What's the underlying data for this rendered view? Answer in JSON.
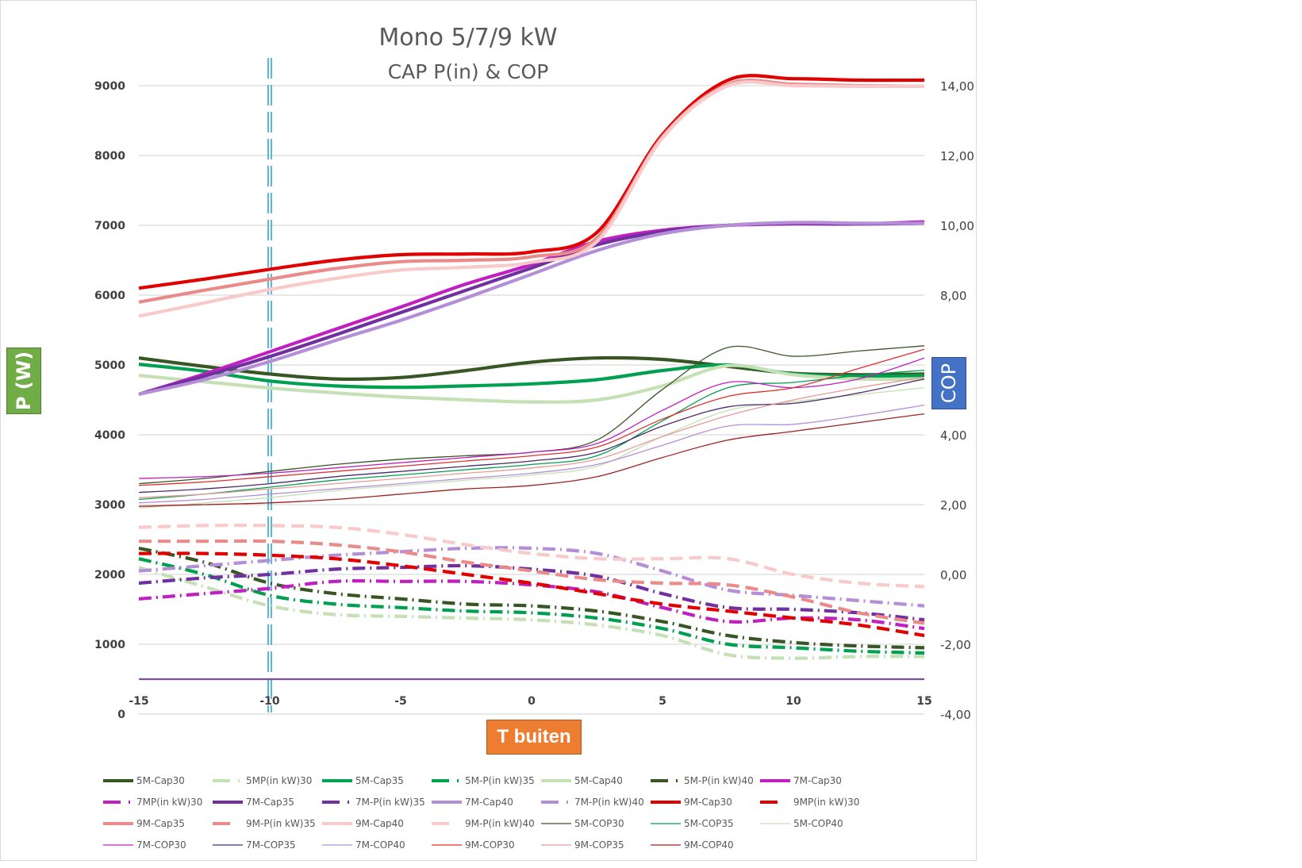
{
  "chart_data": {
    "type": "line",
    "title": "Mono 5/7/9 kW",
    "subtitle": "CAP P(in) & COP",
    "xlabel": "T buiten",
    "ylabel": "P (W)",
    "y2label": "COP",
    "x": [
      -15,
      -12.5,
      -10,
      -7.5,
      -5,
      -2.5,
      0,
      2.5,
      5,
      7.5,
      10,
      12.5,
      15
    ],
    "xlim": [
      -15,
      15
    ],
    "ylim": [
      0,
      9000
    ],
    "y2lim": [
      -4,
      14
    ],
    "xticks": [
      "-15",
      "-10",
      "-5",
      "0",
      "5",
      "10",
      "15"
    ],
    "xtick_values": [
      -15,
      -10,
      -5,
      0,
      5,
      10,
      15
    ],
    "yticks": [
      "0",
      "1000",
      "2000",
      "3000",
      "4000",
      "5000",
      "6000",
      "7000",
      "8000",
      "9000"
    ],
    "ytick_values": [
      0,
      1000,
      2000,
      3000,
      4000,
      5000,
      6000,
      7000,
      8000,
      9000
    ],
    "y2ticks": [
      "-4,00",
      "-2,00",
      "0,00",
      "2,00",
      "4,00",
      "8,00",
      "10,00",
      "12,00",
      "14,00"
    ],
    "y2tick_values": [
      -4,
      -2,
      0,
      2,
      4,
      8,
      10,
      12,
      14
    ],
    "grid": true,
    "legend_position": "bottom",
    "reference_line": {
      "x": -10,
      "label": "",
      "color": "#2ea8d6"
    },
    "baseline": {
      "y": 500,
      "color": "#7e4e9a"
    },
    "series": [
      {
        "name": "5M-Cap30",
        "axis": "left",
        "style": "solid",
        "weight": "thick",
        "color": "#375623",
        "values": [
          5100,
          4980,
          4870,
          4800,
          4820,
          4920,
          5040,
          5100,
          5080,
          4980,
          4880,
          4860,
          4870
        ]
      },
      {
        "name": "5MP(in kW)30",
        "axis": "right",
        "style": "dashdot",
        "weight": "thick",
        "color": "#c5e0b4",
        "values": [
          0.2,
          -0.35,
          -0.9,
          -1.15,
          -1.2,
          -1.25,
          -1.3,
          -1.45,
          -1.75,
          -2.3,
          -2.4,
          -2.35,
          -2.35
        ]
      },
      {
        "name": "5M-Cap35",
        "axis": "left",
        "style": "solid",
        "weight": "thick",
        "color": "#00a050",
        "values": [
          5010,
          4910,
          4770,
          4700,
          4680,
          4700,
          4730,
          4790,
          4920,
          5000,
          4870,
          4840,
          4850
        ]
      },
      {
        "name": "5M-P(in kW)35",
        "axis": "right",
        "style": "dashdot",
        "weight": "thick",
        "color": "#00a050",
        "values": [
          0.45,
          0.0,
          -0.6,
          -0.85,
          -0.95,
          -1.05,
          -1.1,
          -1.25,
          -1.55,
          -2.0,
          -2.1,
          -2.2,
          -2.25
        ]
      },
      {
        "name": "5M-Cap40",
        "axis": "left",
        "style": "solid",
        "weight": "thick",
        "color": "#c5e0b4",
        "values": [
          4850,
          4760,
          4670,
          4600,
          4540,
          4500,
          4470,
          4500,
          4700,
          4990,
          4860,
          4800,
          4800
        ]
      },
      {
        "name": "5M-P(in kW)40",
        "axis": "right",
        "style": "dashdot",
        "weight": "thick",
        "color": "#375623",
        "values": [
          0.75,
          0.35,
          -0.25,
          -0.55,
          -0.7,
          -0.85,
          -0.9,
          -1.05,
          -1.35,
          -1.75,
          -1.95,
          -2.05,
          -2.1
        ]
      },
      {
        "name": "7M-Cap30",
        "axis": "left",
        "style": "solid",
        "weight": "thick",
        "color": "#c020c0",
        "values": [
          4580,
          4870,
          5190,
          5510,
          5830,
          6160,
          6440,
          6770,
          6930,
          7000,
          7020,
          7020,
          7050
        ]
      },
      {
        "name": "7MP(in kW)30",
        "axis": "right",
        "style": "dashdot",
        "weight": "thick",
        "color": "#c020c0",
        "values": [
          -0.7,
          -0.55,
          -0.4,
          -0.2,
          -0.2,
          -0.2,
          -0.3,
          -0.5,
          -0.95,
          -1.35,
          -1.25,
          -1.3,
          -1.55
        ]
      },
      {
        "name": "7M-Cap35",
        "axis": "left",
        "style": "solid",
        "weight": "thick",
        "color": "#7030a0",
        "values": [
          4580,
          4840,
          5120,
          5430,
          5750,
          6070,
          6390,
          6720,
          6910,
          7000,
          7030,
          7020,
          7030
        ]
      },
      {
        "name": "7M-P(in kW)35",
        "axis": "right",
        "style": "dashdot",
        "weight": "thick",
        "color": "#7030a0",
        "values": [
          -0.25,
          -0.1,
          0.0,
          0.15,
          0.2,
          0.25,
          0.15,
          -0.05,
          -0.55,
          -0.95,
          -1.0,
          -1.1,
          -1.3
        ]
      },
      {
        "name": "7M-Cap40",
        "axis": "left",
        "style": "solid",
        "weight": "thick",
        "color": "#b48fd8",
        "values": [
          4580,
          4790,
          5050,
          5350,
          5640,
          5960,
          6300,
          6640,
          6880,
          7000,
          7040,
          7030,
          7030
        ]
      },
      {
        "name": "7M-P(in kW)40",
        "axis": "right",
        "style": "dashdot",
        "weight": "thick",
        "color": "#b48fd8",
        "values": [
          0.1,
          0.25,
          0.4,
          0.55,
          0.65,
          0.75,
          0.75,
          0.6,
          0.1,
          -0.45,
          -0.6,
          -0.75,
          -0.9
        ]
      },
      {
        "name": "9M-Cap30",
        "axis": "left",
        "style": "solid",
        "weight": "thick",
        "color": "#e00000",
        "values": [
          6100,
          6230,
          6370,
          6500,
          6580,
          6590,
          6620,
          6900,
          8300,
          9080,
          9100,
          9080,
          9080
        ]
      },
      {
        "name": "9MP(in kW)30",
        "axis": "right",
        "style": "dash",
        "weight": "thick",
        "color": "#e00000",
        "values": [
          0.6,
          0.6,
          0.55,
          0.45,
          0.25,
          0.0,
          -0.25,
          -0.55,
          -0.85,
          -1.05,
          -1.25,
          -1.45,
          -1.75
        ]
      },
      {
        "name": "9M-Cap35",
        "axis": "left",
        "style": "solid",
        "weight": "thick",
        "color": "#ea8a8a",
        "values": [
          5900,
          6070,
          6230,
          6380,
          6480,
          6500,
          6550,
          6820,
          8270,
          9020,
          9020,
          9000,
          8990
        ]
      },
      {
        "name": "9M-P(in kW)35",
        "axis": "right",
        "style": "dash",
        "weight": "thick",
        "color": "#ea8a8a",
        "values": [
          0.95,
          0.95,
          0.95,
          0.85,
          0.65,
          0.35,
          0.1,
          -0.15,
          -0.25,
          -0.3,
          -0.65,
          -1.1,
          -1.4
        ]
      },
      {
        "name": "9M-Cap40",
        "axis": "left",
        "style": "solid",
        "weight": "thick",
        "color": "#f8caca",
        "values": [
          5700,
          5890,
          6080,
          6240,
          6360,
          6400,
          6470,
          6770,
          8250,
          9000,
          9000,
          8990,
          8990
        ]
      },
      {
        "name": "9M-P(in kW)40",
        "axis": "right",
        "style": "dash",
        "weight": "thick",
        "color": "#f8caca",
        "values": [
          1.35,
          1.4,
          1.4,
          1.35,
          1.15,
          0.85,
          0.6,
          0.45,
          0.45,
          0.45,
          0.0,
          -0.25,
          -0.35
        ]
      },
      {
        "name": "5M-COP30",
        "axis": "right",
        "style": "solid",
        "weight": "thin",
        "color": "#375623",
        "values": [
          2.6,
          2.75,
          2.95,
          3.15,
          3.3,
          3.4,
          3.5,
          3.85,
          5.3,
          6.5,
          6.25,
          6.4,
          6.55
        ]
      },
      {
        "name": "5M-COP35",
        "axis": "right",
        "style": "solid",
        "weight": "thin",
        "color": "#00a050",
        "values": [
          2.15,
          2.3,
          2.5,
          2.7,
          2.85,
          3.0,
          3.15,
          3.4,
          4.4,
          5.35,
          5.5,
          5.7,
          5.85
        ]
      },
      {
        "name": "5M-COP40",
        "axis": "right",
        "style": "solid",
        "weight": "thin",
        "color": "#c5e0b4",
        "values": [
          1.9,
          2.05,
          2.2,
          2.4,
          2.55,
          2.7,
          2.85,
          3.1,
          3.95,
          4.7,
          4.95,
          5.15,
          5.35
        ]
      },
      {
        "name": "7M-COP30",
        "axis": "right",
        "style": "solid",
        "weight": "thin",
        "color": "#c020c0",
        "values": [
          2.75,
          2.8,
          2.9,
          3.05,
          3.2,
          3.35,
          3.5,
          3.75,
          4.7,
          5.5,
          5.35,
          5.6,
          6.2
        ]
      },
      {
        "name": "7M-COP35",
        "axis": "right",
        "style": "solid",
        "weight": "thin",
        "color": "#4b2a6b",
        "values": [
          2.35,
          2.45,
          2.6,
          2.8,
          2.95,
          3.1,
          3.25,
          3.5,
          4.25,
          4.8,
          4.9,
          5.2,
          5.6
        ]
      },
      {
        "name": "7M-COP40",
        "axis": "right",
        "style": "solid",
        "weight": "thin",
        "color": "#b48fd8",
        "values": [
          2.05,
          2.15,
          2.3,
          2.45,
          2.6,
          2.75,
          2.9,
          3.15,
          3.7,
          4.25,
          4.3,
          4.55,
          4.85
        ]
      },
      {
        "name": "9M-COP30",
        "axis": "right",
        "style": "solid",
        "weight": "thin",
        "color": "#e03030",
        "values": [
          2.55,
          2.65,
          2.8,
          2.95,
          3.1,
          3.25,
          3.4,
          3.65,
          4.45,
          5.1,
          5.35,
          5.9,
          6.45
        ]
      },
      {
        "name": "9M-COP35",
        "axis": "right",
        "style": "solid",
        "weight": "thin",
        "color": "#e59a9a",
        "values": [
          2.2,
          2.3,
          2.45,
          2.6,
          2.75,
          2.9,
          3.05,
          3.3,
          3.95,
          4.55,
          5.0,
          5.35,
          5.65
        ]
      },
      {
        "name": "9M-COP40",
        "axis": "right",
        "style": "solid",
        "weight": "thin",
        "color": "#a02020",
        "values": [
          1.95,
          2.0,
          2.05,
          2.15,
          2.3,
          2.45,
          2.55,
          2.8,
          3.35,
          3.85,
          4.1,
          4.35,
          4.6
        ]
      }
    ]
  }
}
